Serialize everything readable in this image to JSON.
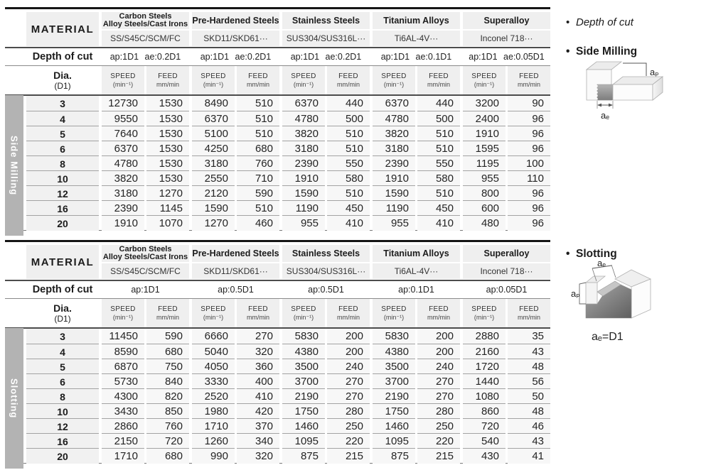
{
  "colors": {
    "header_bg": "#efefef",
    "cell_bg": "#f7f7f7",
    "dia_bg": "#f1f1f1",
    "sidebar_bg": "#b3b3b3",
    "rule_black": "#161616"
  },
  "legend": {
    "bullet": "•",
    "depth_of_cut": "Depth of cut",
    "side_milling": "Side Milling",
    "slotting": "Slotting",
    "ap": "aₚ",
    "ae": "aₑ",
    "ae_eq": "aₑ=D1"
  },
  "tables": [
    {
      "section_label": "Side Milling",
      "header": {
        "material": "MATERIAL",
        "depth_of_cut": "Depth of cut",
        "dia_line1": "Dia.",
        "dia_line2": "(D1)",
        "speed": "SPEED",
        "speed_unit": "(min⁻¹)",
        "feed": "FEED",
        "feed_unit": "mm/min"
      },
      "groups": [
        {
          "name_lines": [
            "Carbon Steels",
            "Alloy Steels/Cast Irons"
          ],
          "grades": "SS/S45C/SCM/FC",
          "depth": "ap:1D1 ae:0.2D1"
        },
        {
          "name_lines": [
            "Pre-Hardened Steels"
          ],
          "grades": "SKD11/SKD61···",
          "depth": "ap:1D1 ae:0.2D1"
        },
        {
          "name_lines": [
            "Stainless Steels"
          ],
          "grades": "SUS304/SUS316L···",
          "depth": "ap:1D1 ae:0.2D1"
        },
        {
          "name_lines": [
            "Titanium Alloys"
          ],
          "grades": "Ti6AL-4V···",
          "depth": "ap:1D1 ae:0.1D1"
        },
        {
          "name_lines": [
            "Superalloy"
          ],
          "grades": "Inconel 718···",
          "depth": "ap:1D1 ae:0.05D1"
        }
      ],
      "rows": [
        {
          "dia": "3",
          "values": [
            [
              "12730",
              "1530"
            ],
            [
              "8490",
              "510"
            ],
            [
              "6370",
              "440"
            ],
            [
              "6370",
              "440"
            ],
            [
              "3200",
              "90"
            ]
          ]
        },
        {
          "dia": "4",
          "values": [
            [
              "9550",
              "1530"
            ],
            [
              "6370",
              "510"
            ],
            [
              "4780",
              "500"
            ],
            [
              "4780",
              "500"
            ],
            [
              "2400",
              "96"
            ]
          ]
        },
        {
          "dia": "5",
          "values": [
            [
              "7640",
              "1530"
            ],
            [
              "5100",
              "510"
            ],
            [
              "3820",
              "510"
            ],
            [
              "3820",
              "510"
            ],
            [
              "1910",
              "96"
            ]
          ]
        },
        {
          "dia": "6",
          "values": [
            [
              "6370",
              "1530"
            ],
            [
              "4250",
              "680"
            ],
            [
              "3180",
              "510"
            ],
            [
              "3180",
              "510"
            ],
            [
              "1595",
              "96"
            ]
          ]
        },
        {
          "dia": "8",
          "values": [
            [
              "4780",
              "1530"
            ],
            [
              "3180",
              "760"
            ],
            [
              "2390",
              "550"
            ],
            [
              "2390",
              "550"
            ],
            [
              "1195",
              "100"
            ]
          ]
        },
        {
          "dia": "10",
          "values": [
            [
              "3820",
              "1530"
            ],
            [
              "2550",
              "710"
            ],
            [
              "1910",
              "580"
            ],
            [
              "1910",
              "580"
            ],
            [
              "955",
              "110"
            ]
          ]
        },
        {
          "dia": "12",
          "values": [
            [
              "3180",
              "1270"
            ],
            [
              "2120",
              "590"
            ],
            [
              "1590",
              "510"
            ],
            [
              "1590",
              "510"
            ],
            [
              "800",
              "96"
            ]
          ]
        },
        {
          "dia": "16",
          "values": [
            [
              "2390",
              "1145"
            ],
            [
              "1590",
              "510"
            ],
            [
              "1190",
              "450"
            ],
            [
              "1190",
              "450"
            ],
            [
              "600",
              "96"
            ]
          ]
        },
        {
          "dia": "20",
          "values": [
            [
              "1910",
              "1070"
            ],
            [
              "1270",
              "460"
            ],
            [
              "955",
              "410"
            ],
            [
              "955",
              "410"
            ],
            [
              "480",
              "96"
            ]
          ]
        }
      ]
    },
    {
      "section_label": "Slotting",
      "header": {
        "material": "MATERIAL",
        "depth_of_cut": "Depth of cut",
        "dia_line1": "Dia.",
        "dia_line2": "(D1)",
        "speed": "SPEED",
        "speed_unit": "(min⁻¹)",
        "feed": "FEED",
        "feed_unit": "mm/min"
      },
      "groups": [
        {
          "name_lines": [
            "Carbon Steels",
            "Alloy Steels/Cast Irons"
          ],
          "grades": "SS/S45C/SCM/FC",
          "depth": "ap:1D1"
        },
        {
          "name_lines": [
            "Pre-Hardened Steels"
          ],
          "grades": "SKD11/SKD61···",
          "depth": "ap:0.5D1"
        },
        {
          "name_lines": [
            "Stainless Steels"
          ],
          "grades": "SUS304/SUS316L···",
          "depth": "ap:0.5D1"
        },
        {
          "name_lines": [
            "Titanium Alloys"
          ],
          "grades": "Ti6AL-4V···",
          "depth": "ap:0.1D1"
        },
        {
          "name_lines": [
            "Superalloy"
          ],
          "grades": "Inconel 718···",
          "depth": "ap:0.05D1"
        }
      ],
      "rows": [
        {
          "dia": "3",
          "values": [
            [
              "11450",
              "590"
            ],
            [
              "6660",
              "270"
            ],
            [
              "5830",
              "200"
            ],
            [
              "5830",
              "200"
            ],
            [
              "2880",
              "35"
            ]
          ]
        },
        {
          "dia": "4",
          "values": [
            [
              "8590",
              "680"
            ],
            [
              "5040",
              "320"
            ],
            [
              "4380",
              "200"
            ],
            [
              "4380",
              "200"
            ],
            [
              "2160",
              "43"
            ]
          ]
        },
        {
          "dia": "5",
          "values": [
            [
              "6870",
              "750"
            ],
            [
              "4050",
              "360"
            ],
            [
              "3500",
              "240"
            ],
            [
              "3500",
              "240"
            ],
            [
              "1720",
              "48"
            ]
          ]
        },
        {
          "dia": "6",
          "values": [
            [
              "5730",
              "840"
            ],
            [
              "3330",
              "400"
            ],
            [
              "3700",
              "270"
            ],
            [
              "3700",
              "270"
            ],
            [
              "1440",
              "56"
            ]
          ]
        },
        {
          "dia": "8",
          "values": [
            [
              "4300",
              "820"
            ],
            [
              "2520",
              "410"
            ],
            [
              "2190",
              "270"
            ],
            [
              "2190",
              "270"
            ],
            [
              "1080",
              "50"
            ]
          ]
        },
        {
          "dia": "10",
          "values": [
            [
              "3430",
              "850"
            ],
            [
              "1980",
              "420"
            ],
            [
              "1750",
              "280"
            ],
            [
              "1750",
              "280"
            ],
            [
              "860",
              "48"
            ]
          ]
        },
        {
          "dia": "12",
          "values": [
            [
              "2860",
              "760"
            ],
            [
              "1710",
              "370"
            ],
            [
              "1460",
              "250"
            ],
            [
              "1460",
              "250"
            ],
            [
              "720",
              "46"
            ]
          ]
        },
        {
          "dia": "16",
          "values": [
            [
              "2150",
              "720"
            ],
            [
              "1260",
              "340"
            ],
            [
              "1095",
              "220"
            ],
            [
              "1095",
              "220"
            ],
            [
              "540",
              "43"
            ]
          ]
        },
        {
          "dia": "20",
          "values": [
            [
              "1710",
              "680"
            ],
            [
              "990",
              "320"
            ],
            [
              "875",
              "215"
            ],
            [
              "875",
              "215"
            ],
            [
              "430",
              "41"
            ]
          ]
        }
      ]
    }
  ]
}
